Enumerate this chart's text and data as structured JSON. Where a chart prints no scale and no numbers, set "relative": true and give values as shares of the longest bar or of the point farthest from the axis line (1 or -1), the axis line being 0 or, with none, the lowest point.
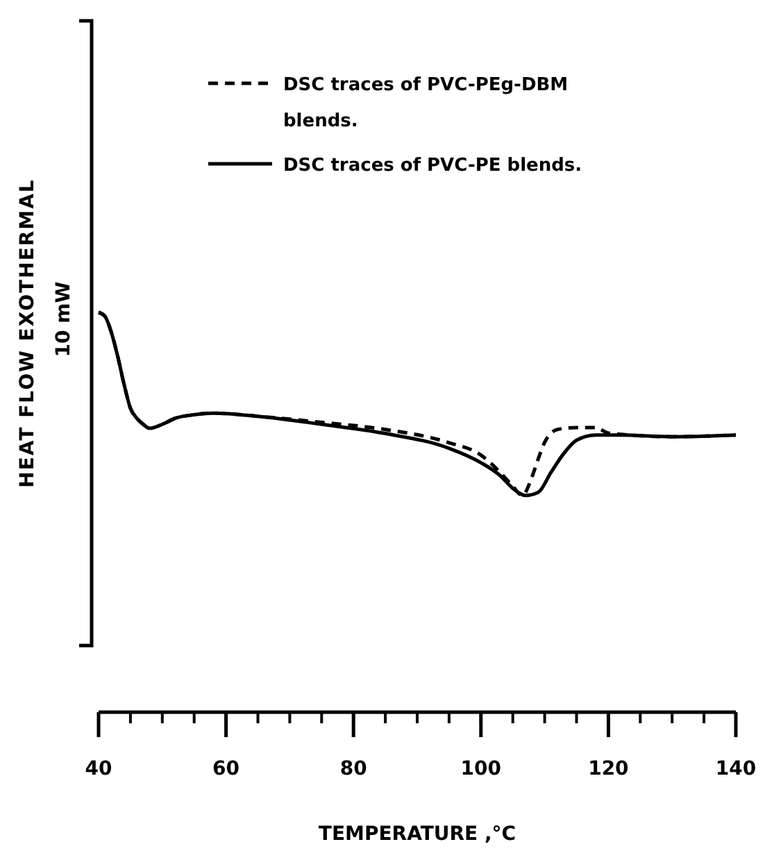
{
  "chart_data": {
    "type": "line",
    "relative": true,
    "xlabel": "TEMPERATURE ,°C",
    "ylabel": "HEAT FLOW  EXOTHERMAL",
    "annotations": [
      "10 mW"
    ],
    "xlim": [
      40,
      140
    ],
    "xticks": [
      40,
      60,
      80,
      100,
      120,
      140
    ],
    "legend": "top right",
    "series": [
      {
        "name": "DSC traces of PVC-PEg-DBM blends.",
        "color": "#000000",
        "line_style": "dashed",
        "x": [
          40,
          41,
          42,
          43,
          44,
          45,
          46,
          47,
          48,
          50,
          52,
          55,
          58,
          65,
          75,
          85,
          95,
          100,
          103,
          105,
          106.5,
          108,
          109,
          110,
          112,
          115,
          118,
          120,
          130,
          140
        ],
        "values": [
          1.0,
          0.99,
          0.95,
          0.89,
          0.82,
          0.76,
          0.735,
          0.72,
          0.71,
          0.72,
          0.735,
          0.744,
          0.748,
          0.74,
          0.725,
          0.707,
          0.674,
          0.643,
          0.6,
          0.565,
          0.542,
          0.588,
          0.634,
          0.675,
          0.707,
          0.712,
          0.712,
          0.698,
          0.689,
          0.693
        ]
      },
      {
        "name": "DSC traces of PVC-PE blends.",
        "color": "#000000",
        "line_style": "solid",
        "x": [
          40,
          41,
          42,
          43,
          44,
          45,
          46,
          47,
          48,
          50,
          52,
          55,
          58,
          65,
          75,
          85,
          95,
          100,
          103,
          105,
          107,
          109,
          111,
          113,
          115,
          118,
          122,
          130,
          140
        ],
        "values": [
          1.0,
          0.99,
          0.95,
          0.89,
          0.82,
          0.76,
          0.735,
          0.72,
          0.71,
          0.72,
          0.735,
          0.744,
          0.748,
          0.74,
          0.72,
          0.697,
          0.66,
          0.624,
          0.592,
          0.56,
          0.542,
          0.55,
          0.6,
          0.647,
          0.68,
          0.693,
          0.693,
          0.689,
          0.693
        ]
      }
    ]
  }
}
